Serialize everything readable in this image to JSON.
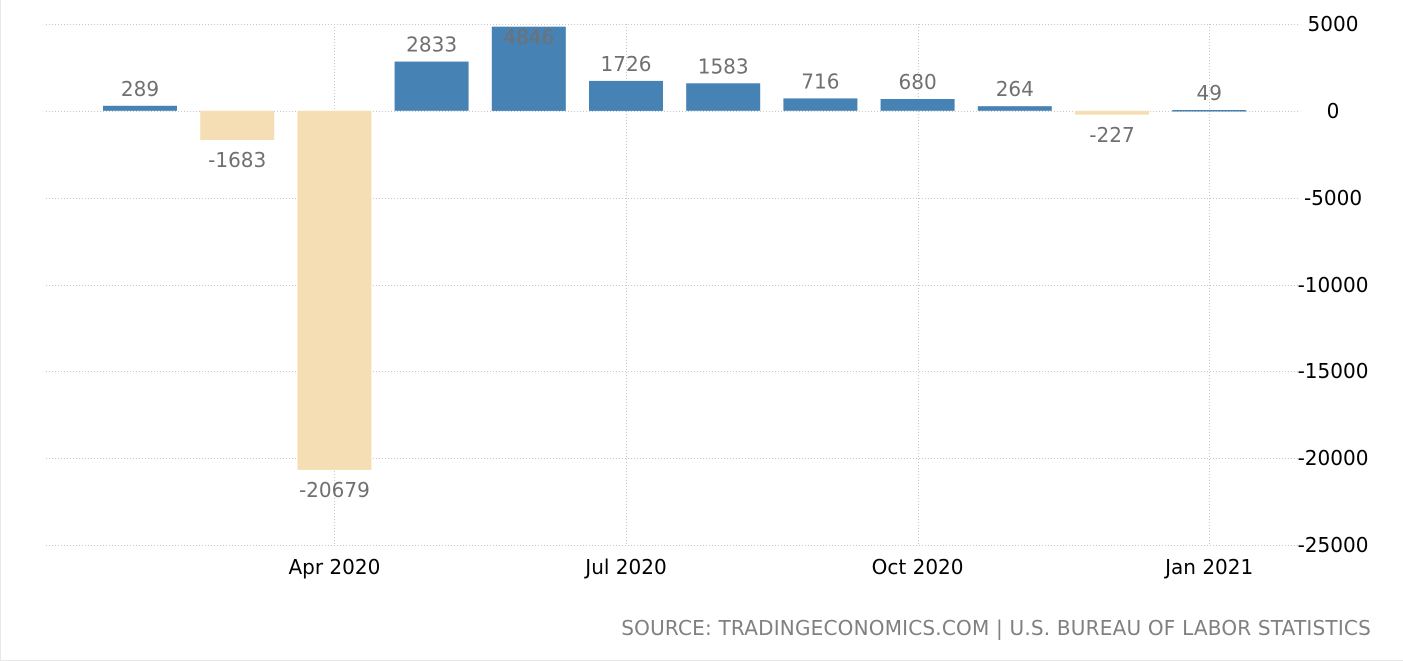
{
  "chart_data": {
    "type": "bar",
    "categories": [
      "2020-02",
      "2020-03",
      "2020-04",
      "2020-05",
      "2020-06",
      "2020-07",
      "2020-08",
      "2020-09",
      "2020-10",
      "2020-11",
      "2020-12",
      "2021-01"
    ],
    "values": [
      289,
      -1683,
      -20679,
      2833,
      4846,
      1726,
      1583,
      716,
      680,
      264,
      -227,
      49
    ],
    "data_labels": [
      "289",
      "-1683",
      "-20679",
      "2833",
      "4846",
      "1726",
      "1583",
      "716",
      "680",
      "264",
      "-227",
      "49"
    ],
    "x_ticks": [
      {
        "category": "2020-04",
        "label": "Apr 2020"
      },
      {
        "category": "2020-07",
        "label": "Jul 2020"
      },
      {
        "category": "2020-10",
        "label": "Oct 2020"
      },
      {
        "category": "2021-01",
        "label": "Jan 2021"
      }
    ],
    "y_ticks": [
      5000,
      0,
      -5000,
      -10000,
      -15000,
      -20000,
      -25000
    ],
    "y_tick_labels": [
      "5000",
      "0",
      "-5000",
      "-10000",
      "-15000",
      "-20000",
      "-25000"
    ],
    "ylim": [
      -25000,
      5000
    ],
    "y_axis_side": "right",
    "grid": true,
    "colors": {
      "positive": "#4682b4",
      "negative": "#f5deb3",
      "label": "#707070",
      "grid": "#c8c8c8"
    },
    "title": "",
    "xlabel": "",
    "ylabel": ""
  },
  "source": {
    "text": "SOURCE: TRADINGECONOMICS.COM | U.S. BUREAU OF LABOR STATISTICS"
  }
}
